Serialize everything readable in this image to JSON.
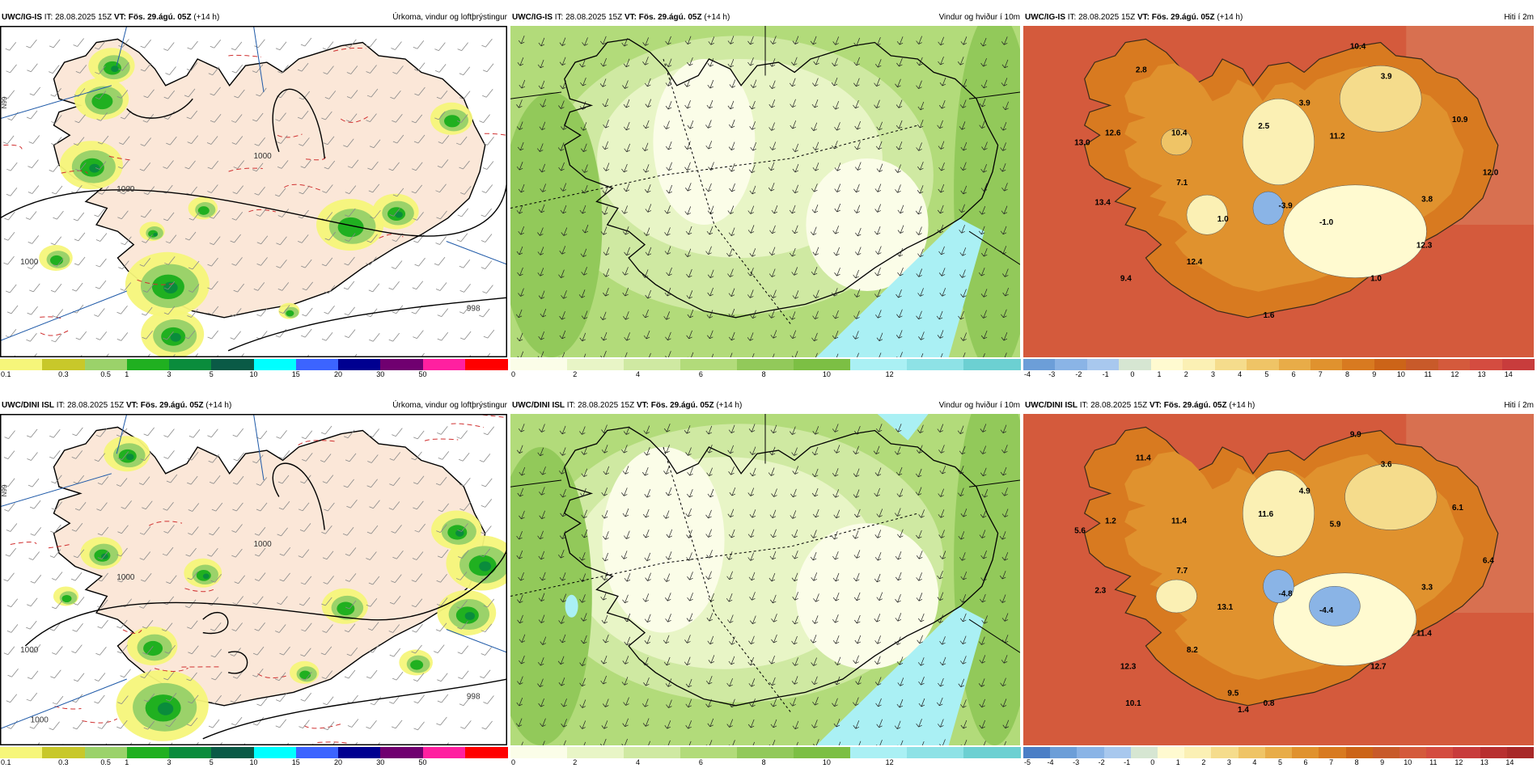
{
  "panels": [
    {
      "row": 0,
      "col": 0,
      "model": "UWC/IG-IS",
      "it": "IT: 28.08.2025 15Z",
      "vt": "VT: Fös. 29.ágú. 05Z",
      "lead": "(+14 h)",
      "field": "Úrkoma, vindur og loftþrýstingur",
      "kind": "precip",
      "isobar_labels": [
        "1000",
        "1000",
        "1000",
        "998"
      ],
      "colorbar": {
        "colors": [
          "#f6f67a",
          "#c8c82a",
          "#9bd26a",
          "#20b020",
          "#0a8c3c",
          "#0a5a46",
          "#00ffff",
          "#3c64ff",
          "#000090",
          "#700070",
          "#ff20a0",
          "#ff0000"
        ],
        "labels": [
          "0.1",
          "0.3",
          "0.5",
          "1",
          "3",
          "5",
          "10",
          "15",
          "20",
          "30",
          "50"
        ]
      }
    },
    {
      "row": 0,
      "col": 1,
      "model": "UWC/IG-IS",
      "it": "IT: 28.08.2025 15Z",
      "vt": "VT: Fös. 29.ágú. 05Z",
      "lead": "(+14 h)",
      "field": "Vindur og hviður í 10m",
      "kind": "wind",
      "colorbar": {
        "colors": [
          "#fbfde8",
          "#e8f5c6",
          "#cfe9a2",
          "#b2db7a",
          "#92c95a",
          "#7cbf44",
          "#aaf0f4",
          "#8ee2e6",
          "#6cd0d2"
        ],
        "labels": [
          "0",
          "2",
          "4",
          "6",
          "8",
          "10",
          "12"
        ]
      }
    },
    {
      "row": 0,
      "col": 2,
      "model": "UWC/IG-IS",
      "it": "IT: 28.08.2025 15Z",
      "vt": "VT: Fös. 29.ágú. 05Z",
      "lead": "(+14 h)",
      "field": "Hiti í 2m",
      "kind": "temp",
      "temp_labels": [
        "10.4",
        "2.8",
        "3.9",
        "3.9",
        "10.9",
        "12.6",
        "13.0",
        "10.4",
        "2.5",
        "11.2",
        "12.0",
        "7.1",
        "13.4",
        "-3.9",
        "3.8",
        "1.0",
        "-1.0",
        "12.3",
        "12.4",
        "9.4",
        "1.0",
        "1.6"
      ],
      "colorbar": {
        "colors": [
          "#6c9ed8",
          "#8ab4e6",
          "#a8c8ee",
          "#d6e6d2",
          "#fffad0",
          "#fbf0b4",
          "#f5dc8c",
          "#efc466",
          "#e8ac48",
          "#e0922e",
          "#d87a20",
          "#cc6418",
          "#c85a2a",
          "#d45a3c",
          "#d44c40",
          "#c83c3c"
        ],
        "labels": [
          "-4",
          "-3",
          "-2",
          "-1",
          "0",
          "1",
          "2",
          "3",
          "4",
          "5",
          "6",
          "7",
          "8",
          "9",
          "10",
          "11",
          "12",
          "13",
          "14"
        ]
      }
    },
    {
      "row": 1,
      "col": 0,
      "model": "UWC/DINI ISL",
      "it": "IT: 28.08.2025 15Z",
      "vt": "VT: Fös. 29.ágú. 05Z",
      "lead": "(+14 h)",
      "field": "Úrkoma, vindur og loftþrýstingur",
      "kind": "precip",
      "isobar_labels": [
        "1000",
        "1000",
        "1000",
        "998",
        "1000"
      ],
      "colorbar": {
        "colors": [
          "#f6f67a",
          "#c8c82a",
          "#9bd26a",
          "#20b020",
          "#0a8c3c",
          "#0a5a46",
          "#00ffff",
          "#3c64ff",
          "#000090",
          "#700070",
          "#ff20a0",
          "#ff0000"
        ],
        "labels": [
          "0.1",
          "0.3",
          "0.5",
          "1",
          "3",
          "5",
          "10",
          "15",
          "20",
          "30",
          "50"
        ]
      }
    },
    {
      "row": 1,
      "col": 1,
      "model": "UWC/DINI ISL",
      "it": "IT: 28.08.2025 15Z",
      "vt": "VT: Fös. 29.ágú. 05Z",
      "lead": "(+14 h)",
      "field": "Vindur og hviður í 10m",
      "kind": "wind",
      "colorbar": {
        "colors": [
          "#fbfde8",
          "#e8f5c6",
          "#cfe9a2",
          "#b2db7a",
          "#92c95a",
          "#7cbf44",
          "#aaf0f4",
          "#8ee2e6",
          "#6cd0d2"
        ],
        "labels": [
          "0",
          "2",
          "4",
          "6",
          "8",
          "10",
          "12"
        ]
      }
    },
    {
      "row": 1,
      "col": 2,
      "model": "UWC/DINI ISL",
      "it": "IT: 28.08.2025 15Z",
      "vt": "VT: Fös. 29.ágú. 05Z",
      "lead": "(+14 h)",
      "field": "Hiti í 2m",
      "kind": "temp",
      "temp_labels": [
        "9.9",
        "11.4",
        "3.6",
        "4.9",
        "6.1",
        "1.2",
        "5.6",
        "11.4",
        "11.6",
        "5.9",
        "6.4",
        "7.7",
        "2.3",
        "-4.8",
        "3.3",
        "13.1",
        "-4.4",
        "11.4",
        "8.2",
        "12.3",
        "12.7",
        "0.8",
        "10.1",
        "9.5",
        "1.4"
      ],
      "colorbar": {
        "colors": [
          "#4a7ec6",
          "#6c9ed8",
          "#8ab4e6",
          "#a8c8ee",
          "#d6e6d2",
          "#fffad0",
          "#fbf0b4",
          "#f5dc8c",
          "#efc466",
          "#e8ac48",
          "#e0922e",
          "#d87a20",
          "#cc6418",
          "#c85a2a",
          "#d45a3c",
          "#d44c40",
          "#c83c3c",
          "#b83030",
          "#a82828"
        ],
        "labels": [
          "-5",
          "-4",
          "-3",
          "-2",
          "-1",
          "0",
          "1",
          "2",
          "3",
          "4",
          "5",
          "6",
          "7",
          "8",
          "9",
          "10",
          "11",
          "12",
          "13",
          "14"
        ]
      }
    }
  ]
}
